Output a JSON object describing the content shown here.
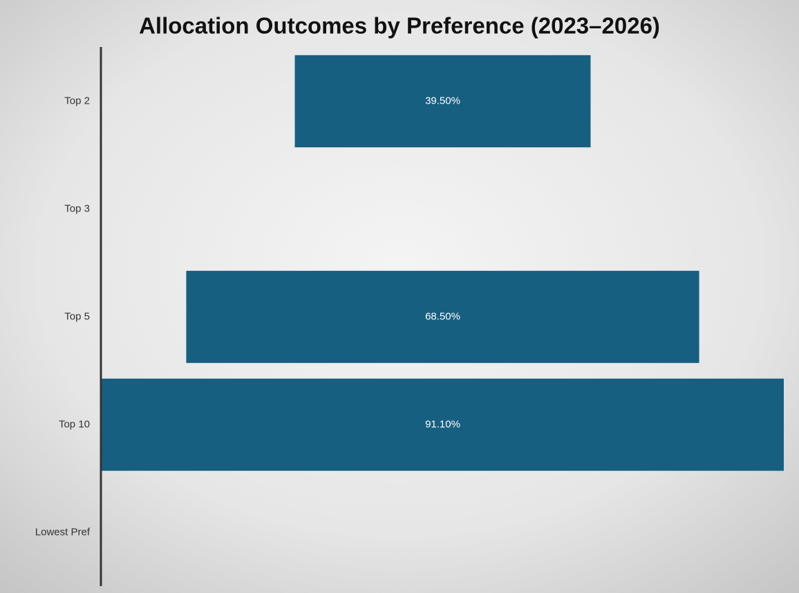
{
  "chart_data": {
    "type": "funnel",
    "title": "Allocation Outcomes by Preference (2023–2026)",
    "categories": [
      "Top 2",
      "Top 3",
      "Top 5",
      "Top 10",
      "Lowest Pref"
    ],
    "values": [
      39.5,
      null,
      68.5,
      91.1,
      null
    ],
    "value_labels": [
      "39.50%",
      null,
      "68.50%",
      "91.10%",
      null
    ],
    "color": "#175f80"
  }
}
